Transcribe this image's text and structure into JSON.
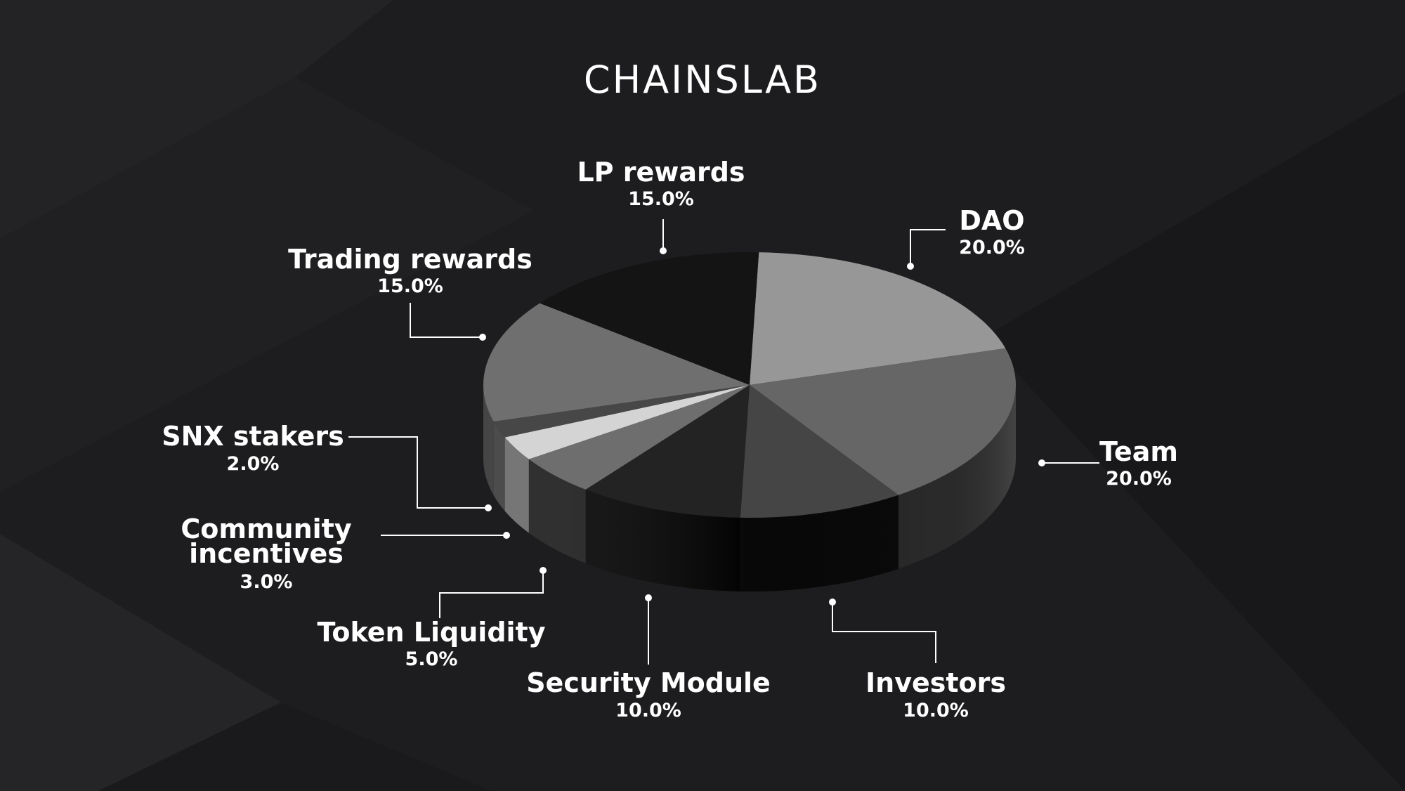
{
  "brand": {
    "logo_text": "CHAINSLAB"
  },
  "chart_data": {
    "type": "pie",
    "style": "3d",
    "title": "",
    "categories": [
      "DAO",
      "Team",
      "Investors",
      "Security Module",
      "Token Liquidity",
      "Community incentives",
      "SNX stakers",
      "Trading rewards",
      "LP rewards"
    ],
    "values": [
      20.0,
      20.0,
      10.0,
      10.0,
      5.0,
      3.0,
      2.0,
      15.0,
      15.0
    ],
    "labels": [
      {
        "name": "DAO",
        "pct": "20.0%"
      },
      {
        "name": "Team",
        "pct": "20.0%"
      },
      {
        "name": "Investors",
        "pct": "10.0%"
      },
      {
        "name": "Security Module",
        "pct": "10.0%"
      },
      {
        "name": "Token Liquidity",
        "pct": "5.0%"
      },
      {
        "name_lines": [
          "Community",
          "incentives"
        ],
        "pct": "3.0%"
      },
      {
        "name": "SNX stakers",
        "pct": "2.0%"
      },
      {
        "name": "Trading rewards",
        "pct": "15.0%"
      },
      {
        "name": "LP rewards",
        "pct": "15.0%"
      }
    ],
    "top_colors": [
      "#979797",
      "#666666",
      "#454545",
      "#232323",
      "#6e6e6e",
      "#d4d4d4",
      "#474747",
      "#6f6f6f",
      "#141414"
    ],
    "side_colors": [
      "#3a3a3a",
      "#2a2a2a",
      "#0a0a0a",
      "#020202",
      "#1c1c1c",
      "#6a6a6a",
      "#3c3c3c",
      "#353535",
      "#0c0c0c"
    ],
    "legend": "none"
  }
}
